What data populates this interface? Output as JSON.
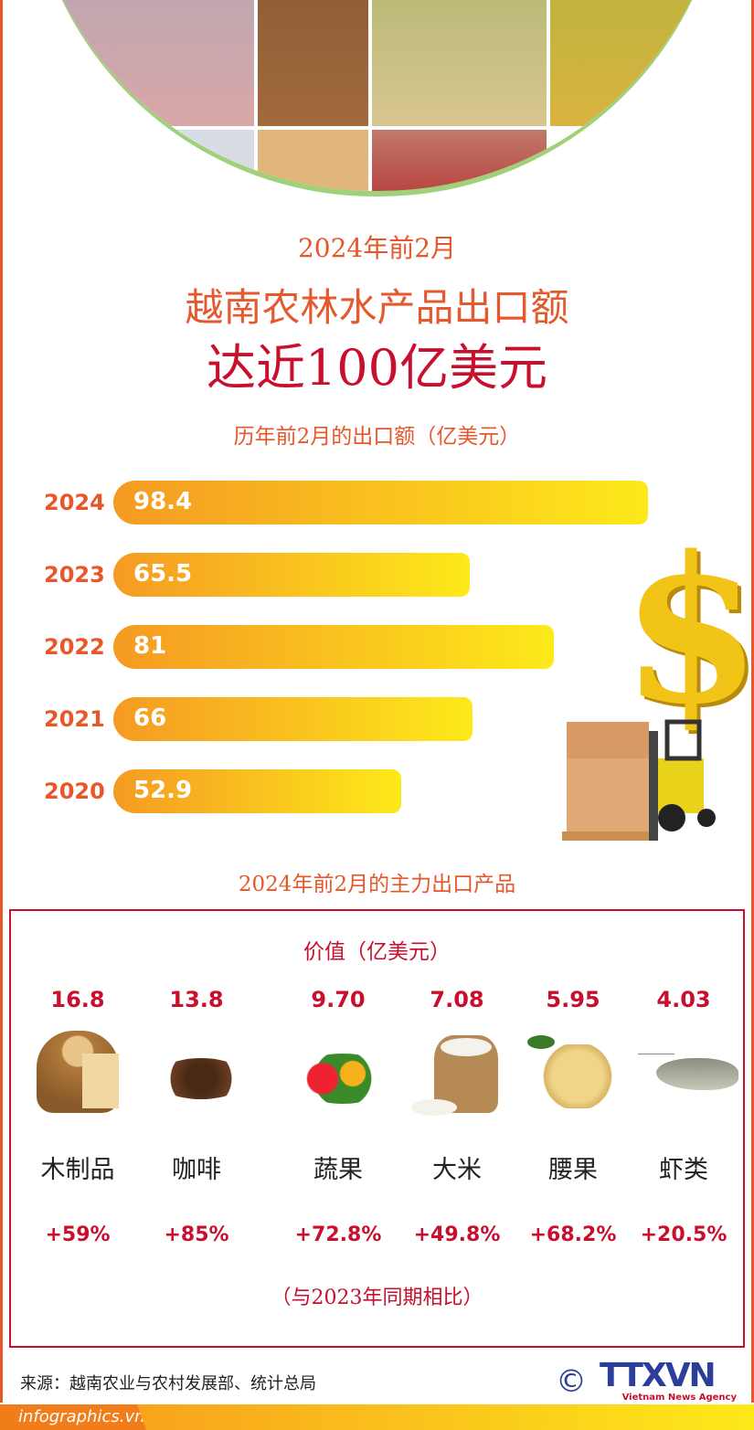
{
  "header": {
    "line1": "2024年前2月",
    "line2": "越南农林水产品出口额",
    "line3": "达近100亿美元"
  },
  "chart_data": {
    "type": "bar",
    "orientation": "horizontal",
    "title": "历年前2月的出口额（亿美元）",
    "categories": [
      "2024",
      "2023",
      "2022",
      "2021",
      "2020"
    ],
    "values": [
      98.4,
      65.5,
      81,
      66,
      52.9
    ],
    "value_labels": [
      "98.4",
      "65.5",
      "81",
      "66",
      "52.9"
    ],
    "colors": {
      "bar_start": "#f59a23",
      "bar_end": "#fde91a",
      "year": "#e8572a"
    }
  },
  "products": {
    "title": "2024年前2月的主力出口产品",
    "value_label": "价值（亿美元）",
    "items": [
      {
        "value": "16.8",
        "name": "木制品",
        "change": "+59%",
        "icon": "wood-stump-icon"
      },
      {
        "value": "13.8",
        "name": "咖啡",
        "change": "+85%",
        "icon": "coffee-beans-icon"
      },
      {
        "value": "9.70",
        "name": "蔬果",
        "change": "+72.8%",
        "icon": "vegetables-icon"
      },
      {
        "value": "7.08",
        "name": "大米",
        "change": "+49.8%",
        "icon": "rice-sack-icon"
      },
      {
        "value": "5.95",
        "name": "腰果",
        "change": "+68.2%",
        "icon": "cashew-icon"
      },
      {
        "value": "4.03",
        "name": "虾类",
        "change": "+20.5%",
        "icon": "shrimp-icon"
      }
    ],
    "note": "（与2023年同期相比）"
  },
  "footer": {
    "source": "来源：越南农业与农村发展部、统计总局",
    "copyright": "©",
    "logo": "TTXVN",
    "logo_sub": "Vietnam News Agency",
    "site": "infographics.vn"
  }
}
